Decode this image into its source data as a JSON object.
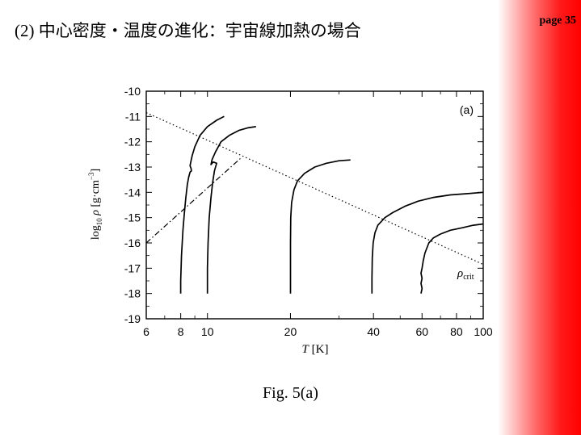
{
  "slide": {
    "title": "(2) 中心密度・温度の進化：宇宙線加熱の場合",
    "page": "page 35",
    "caption": "Fig. 5(a)"
  },
  "colors": {
    "band": "#ff0000",
    "line": "#000000"
  },
  "chart_data": {
    "type": "line",
    "panel_label": "(a)",
    "xscale": "log",
    "xlim": [
      6,
      100
    ],
    "ylim": [
      -19,
      -10
    ],
    "xticks": [
      6,
      8,
      10,
      20,
      40,
      60,
      80,
      100
    ],
    "yticks": [
      -10,
      -11,
      -12,
      -13,
      -14,
      -15,
      -16,
      -17,
      -18,
      -19
    ],
    "xlabel": {
      "var": "T",
      "unit": " [K]"
    },
    "ylabel": {
      "pre": "log",
      "sub": "10",
      "var": " ρ",
      "unit": " [g·cm",
      "sup": "−3",
      "end": "]"
    },
    "annotation": {
      "var": "ρ",
      "sub": "crit"
    },
    "series": [
      {
        "style": "dotted",
        "points": [
          [
            6,
            -10.85
          ],
          [
            100,
            -16.85
          ]
        ]
      },
      {
        "style": "dashdot",
        "points": [
          [
            6,
            -16.0
          ],
          [
            13.2,
            -12.65
          ]
        ]
      },
      {
        "style": "solid",
        "points": [
          [
            8.0,
            -18.0
          ],
          [
            8.0,
            -17.5
          ],
          [
            8.05,
            -16.5
          ],
          [
            8.15,
            -15.5
          ],
          [
            8.25,
            -14.8
          ],
          [
            8.35,
            -14.2
          ],
          [
            8.45,
            -13.7
          ],
          [
            8.55,
            -13.4
          ],
          [
            8.65,
            -13.2
          ],
          [
            8.75,
            -13.15
          ],
          [
            8.72,
            -13.05
          ],
          [
            8.65,
            -12.95
          ],
          [
            8.7,
            -12.8
          ],
          [
            8.8,
            -12.55
          ],
          [
            9.0,
            -12.2
          ],
          [
            9.4,
            -11.75
          ],
          [
            10.0,
            -11.4
          ],
          [
            10.8,
            -11.15
          ],
          [
            11.5,
            -11.0
          ]
        ]
      },
      {
        "style": "solid",
        "points": [
          [
            10.0,
            -18.0
          ],
          [
            10.0,
            -17.0
          ],
          [
            10.05,
            -16.0
          ],
          [
            10.15,
            -15.0
          ],
          [
            10.3,
            -14.2
          ],
          [
            10.45,
            -13.6
          ],
          [
            10.6,
            -13.15
          ],
          [
            10.8,
            -12.85
          ],
          [
            10.5,
            -12.8
          ],
          [
            10.3,
            -12.9
          ],
          [
            10.4,
            -12.7
          ],
          [
            10.7,
            -12.4
          ],
          [
            11.2,
            -12.0
          ],
          [
            12.0,
            -11.75
          ],
          [
            13.0,
            -11.55
          ],
          [
            14.0,
            -11.45
          ],
          [
            15.0,
            -11.4
          ]
        ]
      },
      {
        "style": "solid",
        "points": [
          [
            20.0,
            -18.0
          ],
          [
            20.0,
            -17.0
          ],
          [
            20.0,
            -16.0
          ],
          [
            20.05,
            -15.0
          ],
          [
            20.2,
            -14.4
          ],
          [
            20.6,
            -13.9
          ],
          [
            21.2,
            -13.55
          ],
          [
            22.5,
            -13.25
          ],
          [
            24.5,
            -13.0
          ],
          [
            27.0,
            -12.85
          ],
          [
            30.0,
            -12.75
          ],
          [
            33.0,
            -12.72
          ]
        ]
      },
      {
        "style": "solid",
        "points": [
          [
            39.5,
            -18.0
          ],
          [
            39.5,
            -17.4
          ],
          [
            39.6,
            -16.6
          ],
          [
            39.9,
            -16.0
          ],
          [
            40.5,
            -15.6
          ],
          [
            41.5,
            -15.3
          ],
          [
            44.0,
            -15.0
          ],
          [
            47.0,
            -14.8
          ],
          [
            52.0,
            -14.55
          ],
          [
            58.0,
            -14.35
          ],
          [
            66.0,
            -14.2
          ],
          [
            76.0,
            -14.1
          ],
          [
            88.0,
            -14.05
          ],
          [
            100.0,
            -14.0
          ]
        ]
      },
      {
        "style": "solid",
        "points": [
          [
            59.5,
            -18.0
          ],
          [
            60.0,
            -17.8
          ],
          [
            59.5,
            -17.6
          ],
          [
            60.0,
            -17.4
          ],
          [
            59.5,
            -17.2
          ],
          [
            60.0,
            -17.0
          ],
          [
            60.6,
            -16.7
          ],
          [
            61.5,
            -16.4
          ],
          [
            63.5,
            -16.0
          ],
          [
            66.0,
            -15.8
          ],
          [
            70.0,
            -15.65
          ],
          [
            76.0,
            -15.5
          ],
          [
            84.0,
            -15.4
          ],
          [
            92.0,
            -15.3
          ],
          [
            100.0,
            -15.25
          ]
        ]
      }
    ]
  }
}
